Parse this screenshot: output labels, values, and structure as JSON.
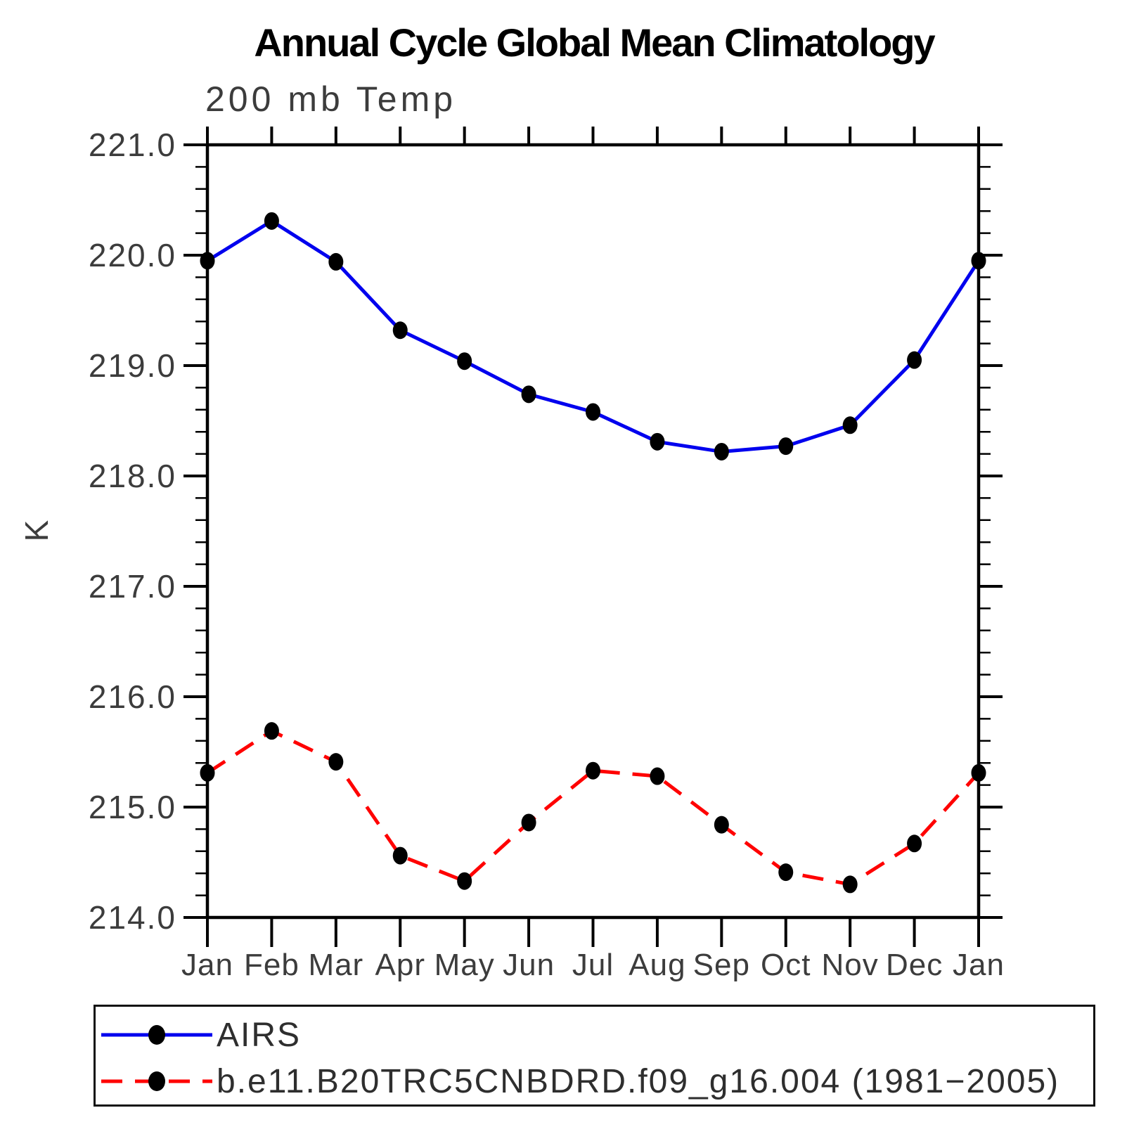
{
  "title": "Annual Cycle Global Mean Climatology",
  "subtitle": "200 mb Temp",
  "y_axis": {
    "unit_label": "K",
    "tick_labels": [
      "221.0",
      "220.0",
      "219.0",
      "218.0",
      "217.0",
      "216.0",
      "215.0",
      "214.0"
    ]
  },
  "x_axis": {
    "tick_labels": [
      "Jan",
      "Feb",
      "Mar",
      "Apr",
      "May",
      "Jun",
      "Jul",
      "Aug",
      "Sep",
      "Oct",
      "Nov",
      "Dec",
      "Jan"
    ]
  },
  "legend": {
    "entries": [
      {
        "label": "AIRS"
      },
      {
        "label": "b.e11.B20TRC5CNBDRD.f09_g16.004 (1981−2005)"
      }
    ]
  },
  "chart_data": {
    "type": "line",
    "title": "Annual Cycle Global Mean Climatology",
    "subtitle": "200 mb Temp",
    "categories": [
      "Jan",
      "Feb",
      "Mar",
      "Apr",
      "May",
      "Jun",
      "Jul",
      "Aug",
      "Sep",
      "Oct",
      "Nov",
      "Dec",
      "Jan"
    ],
    "series": [
      {
        "name": "AIRS",
        "color": "#0000ee",
        "line_style": "solid",
        "marker": "filled-circle",
        "marker_color": "#000000",
        "values": [
          219.95,
          220.31,
          219.94,
          219.32,
          219.04,
          218.74,
          218.58,
          218.31,
          218.22,
          218.27,
          218.46,
          219.05,
          219.95
        ]
      },
      {
        "name": "b.e11.B20TRC5CNBDRD.f09_g16.004 (1981−2005)",
        "color": "#ff0000",
        "line_style": "dashed",
        "marker": "filled-circle",
        "marker_color": "#000000",
        "values": [
          215.31,
          215.69,
          215.41,
          214.56,
          214.33,
          214.86,
          215.33,
          215.28,
          214.84,
          214.41,
          214.3,
          214.67,
          215.31
        ]
      }
    ],
    "xlabel": "",
    "ylabel": "K",
    "ylim": [
      214.0,
      221.0
    ],
    "ytick_step": 1.0,
    "yminor_step": 0.2,
    "grid": false,
    "legend_position": "bottom-left-box"
  }
}
